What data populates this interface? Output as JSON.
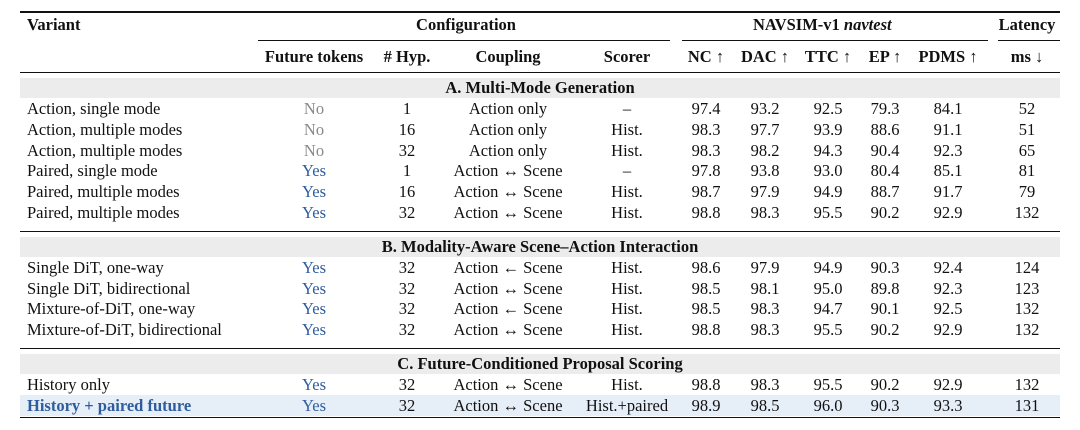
{
  "header": {
    "variant": "Variant",
    "configuration": "Configuration",
    "benchmark": "NAVSIM-v1",
    "benchmark_split": "navtest",
    "latency": "Latency",
    "subheaders": [
      "Future tokens",
      "# Hyp.",
      "Coupling",
      "Scorer",
      "NC ↑",
      "DAC ↑",
      "TTC ↑",
      "EP ↑",
      "PDMS ↑",
      "ms ↓"
    ]
  },
  "future_token_colors": {
    "Yes": "#2e5c9e",
    "No": "#8a8a8a"
  },
  "sections": [
    {
      "title": "A. Multi-Mode Generation",
      "rows": [
        [
          "Action, single mode",
          "No",
          "1",
          "Action only",
          "–",
          "97.4",
          "93.2",
          "92.5",
          "79.3",
          "84.1",
          "52"
        ],
        [
          "Action, multiple modes",
          "No",
          "16",
          "Action only",
          "Hist.",
          "98.3",
          "97.7",
          "93.9",
          "88.6",
          "91.1",
          "51"
        ],
        [
          "Action, multiple modes",
          "No",
          "32",
          "Action only",
          "Hist.",
          "98.3",
          "98.2",
          "94.3",
          "90.4",
          "92.3",
          "65"
        ],
        [
          "Paired, single mode",
          "Yes",
          "1",
          "Action ↔ Scene",
          "–",
          "97.8",
          "93.8",
          "93.0",
          "80.4",
          "85.1",
          "81"
        ],
        [
          "Paired, multiple modes",
          "Yes",
          "16",
          "Action ↔ Scene",
          "Hist.",
          "98.7",
          "97.9",
          "94.9",
          "88.7",
          "91.7",
          "79"
        ],
        [
          "Paired, multiple modes",
          "Yes",
          "32",
          "Action ↔ Scene",
          "Hist.",
          "98.8",
          "98.3",
          "95.5",
          "90.2",
          "92.9",
          "132"
        ]
      ]
    },
    {
      "title": "B. Modality-Aware Scene–Action Interaction",
      "rows": [
        [
          "Single DiT, one-way",
          "Yes",
          "32",
          "Action ← Scene",
          "Hist.",
          "98.6",
          "97.9",
          "94.9",
          "90.3",
          "92.4",
          "124"
        ],
        [
          "Single DiT, bidirectional",
          "Yes",
          "32",
          "Action ↔ Scene",
          "Hist.",
          "98.5",
          "98.1",
          "95.0",
          "89.8",
          "92.3",
          "123"
        ],
        [
          "Mixture-of-DiT, one-way",
          "Yes",
          "32",
          "Action ← Scene",
          "Hist.",
          "98.5",
          "98.3",
          "94.7",
          "90.1",
          "92.5",
          "132"
        ],
        [
          "Mixture-of-DiT, bidirectional",
          "Yes",
          "32",
          "Action ↔ Scene",
          "Hist.",
          "98.8",
          "98.3",
          "95.5",
          "90.2",
          "92.9",
          "132"
        ]
      ]
    },
    {
      "title": "C. Future-Conditioned Proposal Scoring",
      "rows": [
        [
          "History only",
          "Yes",
          "32",
          "Action ↔ Scene",
          "Hist.",
          "98.8",
          "98.3",
          "95.5",
          "90.2",
          "92.9",
          "132"
        ],
        [
          "History + paired future",
          "Yes",
          "32",
          "Action ↔ Scene",
          "Hist.+paired",
          "98.9",
          "98.5",
          "96.0",
          "90.3",
          "93.3",
          "131"
        ]
      ]
    }
  ]
}
